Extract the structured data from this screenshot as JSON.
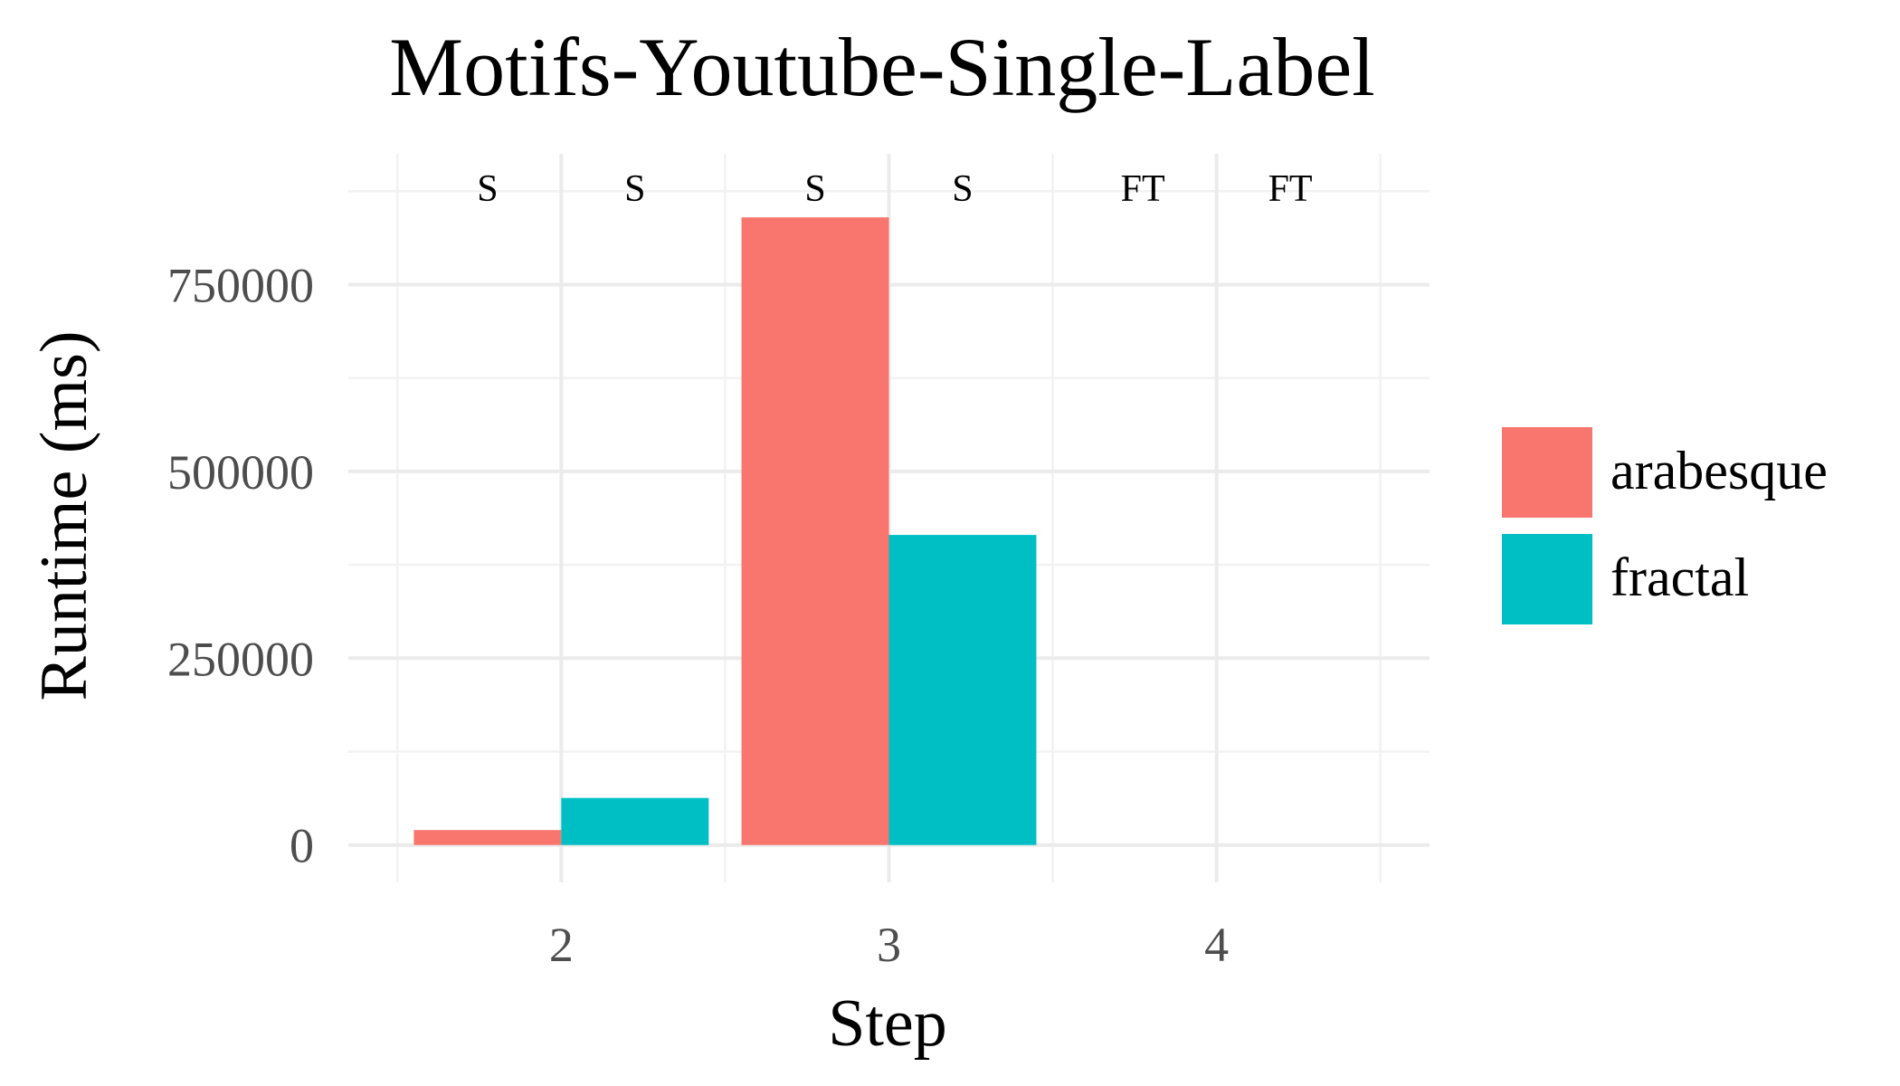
{
  "chart_data": {
    "type": "bar",
    "title": "Motifs-Youtube-Single-Label",
    "xlabel": "Step",
    "ylabel": "Runtime (ms)",
    "categories": [
      "2",
      "3",
      "4"
    ],
    "series": [
      {
        "name": "arabesque",
        "values": [
          20000,
          840000,
          null
        ],
        "statuses": [
          "S",
          "S",
          "FT"
        ]
      },
      {
        "name": "fractal",
        "values": [
          63000,
          415000,
          null
        ],
        "statuses": [
          "S",
          "S",
          "FT"
        ]
      }
    ],
    "yticks": [
      0,
      250000,
      500000,
      750000
    ],
    "yticklabels": [
      "0",
      "250000",
      "500000",
      "750000"
    ],
    "ylim": [
      -50000,
      925000
    ],
    "grid": true,
    "legend_position": "right",
    "colors": {
      "arabesque": "#F8766D",
      "fractal": "#00BFC4"
    }
  }
}
